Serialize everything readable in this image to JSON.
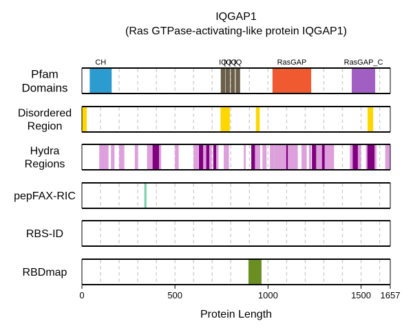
{
  "chart_data": {
    "type": "bar",
    "title": "IQGAP1",
    "subtitle": "(Ras GTPase-activating-like protein IQGAP1)",
    "xlabel": "Protein Length",
    "xlim": [
      0,
      1657
    ],
    "xticks": [
      0,
      500,
      1000,
      1500,
      1657
    ],
    "xtick_labels": [
      "0",
      "500",
      "1000",
      "1500",
      "1657"
    ],
    "gridlines": [
      100,
      200,
      300,
      400,
      500,
      600,
      700,
      800,
      900,
      1000,
      1100,
      1200,
      1300,
      1400,
      1500,
      1600
    ],
    "tracks": [
      {
        "label_lines": [
          "Pfam",
          "Domains"
        ],
        "segments": [
          {
            "start": 42,
            "end": 160,
            "color": "#2b9bd0",
            "label": "CH"
          },
          {
            "start": 746,
            "end": 770,
            "color": "#6b5f4b",
            "label": "IQ"
          },
          {
            "start": 772,
            "end": 796,
            "color": "#6b5f4b",
            "label": "IQ"
          },
          {
            "start": 800,
            "end": 822,
            "color": "#6b5f4b",
            "label": "IQ"
          },
          {
            "start": 826,
            "end": 850,
            "color": "#6b5f4b",
            "label": "IQ"
          },
          {
            "start": 1024,
            "end": 1232,
            "color": "#f05a30",
            "label": "RasGAP"
          },
          {
            "start": 1450,
            "end": 1576,
            "color": "#a15fc4",
            "label": "RasGAP_C"
          }
        ]
      },
      {
        "label_lines": [
          "Disordered",
          "Region"
        ],
        "segments": [
          {
            "start": 0,
            "end": 26,
            "color": "#ffd700"
          },
          {
            "start": 745,
            "end": 795,
            "color": "#ffd700"
          },
          {
            "start": 935,
            "end": 955,
            "color": "#ffd700"
          },
          {
            "start": 1535,
            "end": 1565,
            "color": "#ffd700"
          }
        ]
      },
      {
        "label_lines": [
          "Hydra",
          "Regions"
        ],
        "segments": [
          {
            "start": 93,
            "end": 143,
            "color": "#dda0dd"
          },
          {
            "start": 156,
            "end": 175,
            "color": "#dda0dd"
          },
          {
            "start": 200,
            "end": 228,
            "color": "#dda0dd"
          },
          {
            "start": 284,
            "end": 302,
            "color": "#dda0dd"
          },
          {
            "start": 350,
            "end": 375,
            "color": "#dda0dd"
          },
          {
            "start": 375,
            "end": 390,
            "color": "#dda0dd"
          },
          {
            "start": 380,
            "end": 415,
            "color": "#800080"
          },
          {
            "start": 415,
            "end": 426,
            "color": "#dda0dd"
          },
          {
            "start": 500,
            "end": 520,
            "color": "#dda0dd"
          },
          {
            "start": 600,
            "end": 625,
            "color": "#dda0dd"
          },
          {
            "start": 628,
            "end": 652,
            "color": "#800080"
          },
          {
            "start": 652,
            "end": 668,
            "color": "#dda0dd"
          },
          {
            "start": 668,
            "end": 685,
            "color": "#800080"
          },
          {
            "start": 685,
            "end": 698,
            "color": "#dda0dd"
          },
          {
            "start": 706,
            "end": 722,
            "color": "#800080"
          },
          {
            "start": 722,
            "end": 734,
            "color": "#dda0dd"
          },
          {
            "start": 762,
            "end": 790,
            "color": "#dda0dd"
          },
          {
            "start": 870,
            "end": 880,
            "color": "#dda0dd"
          },
          {
            "start": 910,
            "end": 930,
            "color": "#800080"
          },
          {
            "start": 930,
            "end": 958,
            "color": "#dda0dd"
          },
          {
            "start": 970,
            "end": 992,
            "color": "#dda0dd"
          },
          {
            "start": 1010,
            "end": 1035,
            "color": "#dda0dd"
          },
          {
            "start": 1035,
            "end": 1098,
            "color": "#dda0dd"
          },
          {
            "start": 1098,
            "end": 1107,
            "color": "#800080"
          },
          {
            "start": 1107,
            "end": 1160,
            "color": "#dda0dd"
          },
          {
            "start": 1180,
            "end": 1208,
            "color": "#dda0dd"
          },
          {
            "start": 1220,
            "end": 1232,
            "color": "#dda0dd"
          },
          {
            "start": 1236,
            "end": 1259,
            "color": "#800080"
          },
          {
            "start": 1259,
            "end": 1290,
            "color": "#dda0dd"
          },
          {
            "start": 1290,
            "end": 1305,
            "color": "#800080"
          },
          {
            "start": 1305,
            "end": 1355,
            "color": "#dda0dd"
          },
          {
            "start": 1440,
            "end": 1455,
            "color": "#dda0dd"
          },
          {
            "start": 1455,
            "end": 1483,
            "color": "#800080"
          },
          {
            "start": 1483,
            "end": 1500,
            "color": "#dda0dd"
          },
          {
            "start": 1526,
            "end": 1534,
            "color": "#dda0dd"
          },
          {
            "start": 1534,
            "end": 1573,
            "color": "#800080"
          },
          {
            "start": 1573,
            "end": 1583,
            "color": "#dda0dd"
          },
          {
            "start": 1630,
            "end": 1655,
            "color": "#dda0dd"
          }
        ]
      },
      {
        "label_lines": [
          "pepFAX-RIC"
        ],
        "segments": [
          {
            "start": 335,
            "end": 347,
            "color": "#7fd3b0"
          }
        ]
      },
      {
        "label_lines": [
          "RBS-ID"
        ],
        "segments": []
      },
      {
        "label_lines": [
          "RBDmap"
        ],
        "segments": [
          {
            "start": 895,
            "end": 965,
            "color": "#6b8e23"
          }
        ]
      }
    ]
  }
}
